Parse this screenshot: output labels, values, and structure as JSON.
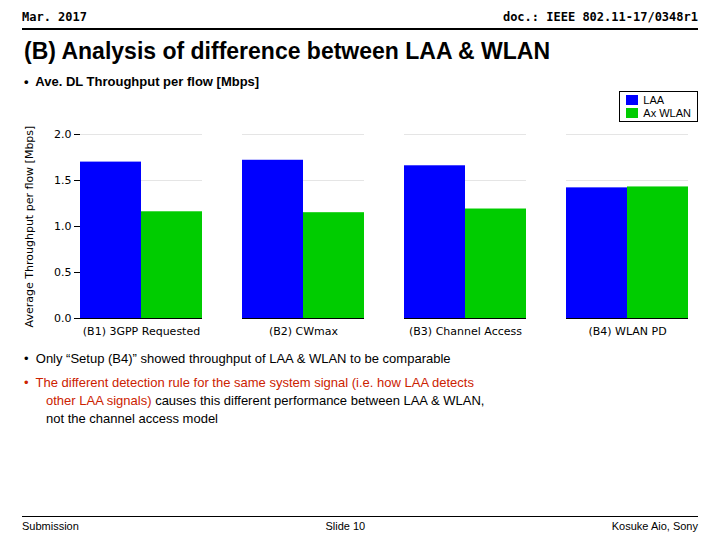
{
  "chart_data": {
    "type": "bar",
    "title": "(B) Analysis of difference between LAA & WLAN",
    "categories": [
      "(B1) 3GPP Requested",
      "(B2) CWmax",
      "(B3) Channel Access",
      "(B4) WLAN PD"
    ],
    "series": [
      {
        "name": "LAA",
        "color": "#0000FF",
        "values": [
          1.7,
          1.72,
          1.66,
          1.42
        ]
      },
      {
        "name": "Ax WLAN",
        "color": "#00CC00",
        "values": [
          1.16,
          1.15,
          1.19,
          1.43
        ]
      }
    ],
    "ylabel": "Average Throughput per flow [Mbps]",
    "ylim": [
      0,
      2
    ],
    "yticks": [
      {
        "value": 0,
        "label": "0.0"
      },
      {
        "value": 0.5,
        "label": "0.5"
      },
      {
        "value": 1,
        "label": "1.0"
      },
      {
        "value": 1.5,
        "label": "1.5"
      },
      {
        "value": 2,
        "label": "2.0"
      }
    ],
    "grid": true,
    "legend": "upper right",
    "annotations": [
      {
        "text": "Mar. 2017"
      },
      {
        "text": "doc.: IEEE 802.11-17/0348r1"
      },
      {
        "text": "•  Ave. DL Throughput per flow [Mbps]"
      },
      {
        "text": "•  Only “Setup (B4)” showed throughput of LAA & WLAN to be comparable"
      },
      {
        "text": "•  The different detection rule for the same system signal (i.e. how LAA detects",
        "color": "#CC2200"
      },
      {
        "text": "other LAA signals)",
        "color": "#CC2200"
      },
      {
        "text": " causes this different performance between LAA & WLAN,"
      },
      {
        "text": "not the channel access model"
      },
      {
        "text": "Submission"
      },
      {
        "text": "Slide 10"
      },
      {
        "text": "Kosuke Aio, Sony"
      }
    ]
  }
}
